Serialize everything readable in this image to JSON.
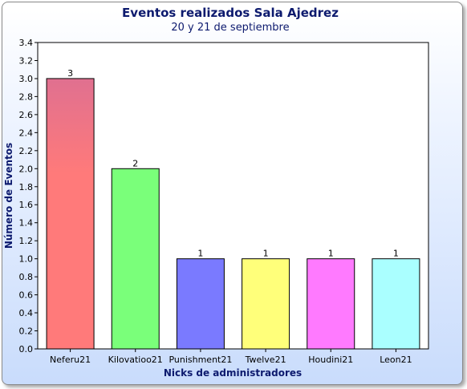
{
  "chart_data": {
    "type": "bar",
    "title": "Eventos realizados Sala Ajedrez",
    "subtitle": "20 y 21 de septiembre",
    "xlabel": "Nicks de administradores",
    "ylabel": "Número de Eventos",
    "categories": [
      "Neferu21",
      "Kilovatioo21",
      "Punishment21",
      "Twelve21",
      "Houdini21",
      "Leon21"
    ],
    "values": [
      3,
      2,
      1,
      1,
      1,
      1
    ],
    "data_labels": [
      "3",
      "2",
      "1",
      "1",
      "1",
      "1"
    ],
    "colors": [
      "#ff7a7a",
      "#7aff7a",
      "#7a7aff",
      "#ffff7a",
      "#ff7aff",
      "#aaffff"
    ],
    "top_shade": "#e07090",
    "ylim": [
      0,
      3.4
    ],
    "yticks": [
      "0.0",
      "0.2",
      "0.4",
      "0.6",
      "0.8",
      "1.0",
      "1.2",
      "1.4",
      "1.6",
      "1.8",
      "2.0",
      "2.2",
      "2.4",
      "2.6",
      "2.8",
      "3.0",
      "3.2",
      "3.4"
    ],
    "grid": false,
    "legend": "none"
  }
}
